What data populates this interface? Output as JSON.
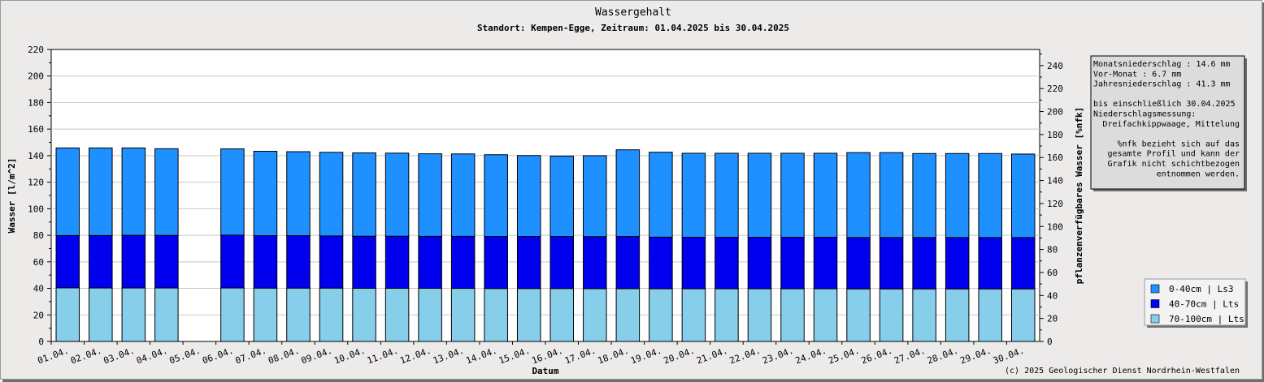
{
  "chart_data": {
    "type": "bar",
    "stacked": true,
    "title": "Wassergehalt",
    "subtitle": "Standort: Kempen-Egge, Zeitraum: 01.04.2025 bis 30.04.2025",
    "xlabel": "Datum",
    "ylabel": "Wasser [l/m^2]",
    "y2label": "pflanzenverfügbares Wasser [%nfk]",
    "ylim": [
      0,
      220
    ],
    "y2lim": [
      0,
      254
    ],
    "yticks": [
      0,
      20,
      40,
      60,
      80,
      100,
      120,
      140,
      160,
      180,
      200,
      220
    ],
    "y2ticks": [
      0,
      20,
      40,
      60,
      80,
      100,
      120,
      140,
      160,
      180,
      200,
      220,
      240
    ],
    "grid": true,
    "legend_position": "bottom-right",
    "categories": [
      "01.04.",
      "02.04.",
      "03.04.",
      "04.04.",
      "05.04.",
      "06.04.",
      "07.04.",
      "08.04.",
      "09.04.",
      "10.04.",
      "11.04.",
      "12.04.",
      "13.04.",
      "14.04.",
      "15.04.",
      "16.04.",
      "17.04.",
      "18.04.",
      "19.04.",
      "20.04.",
      "21.04.",
      "22.04.",
      "23.04.",
      "24.04.",
      "25.04.",
      "26.04.",
      "27.04.",
      "28.04.",
      "29.04.",
      "30.04."
    ],
    "series": [
      {
        "name": "70-100cm | Lts",
        "color": "#87ceeb",
        "values": [
          40.4,
          40.3,
          40.3,
          40.3,
          null,
          40.3,
          40.2,
          40.2,
          40.2,
          40.1,
          40.1,
          40.1,
          40.0,
          39.9,
          39.9,
          39.9,
          39.8,
          39.8,
          39.7,
          39.7,
          39.7,
          39.7,
          39.7,
          39.7,
          39.6,
          39.6,
          39.6,
          39.6,
          39.6,
          39.6
        ]
      },
      {
        "name": "40-70cm | Lts",
        "color": "#0000ee",
        "values": [
          39.4,
          39.5,
          39.7,
          39.6,
          null,
          39.8,
          39.5,
          39.5,
          39.3,
          39.2,
          39.2,
          39.1,
          39.2,
          39.2,
          39.2,
          39.2,
          39.2,
          39.3,
          38.9,
          38.8,
          38.8,
          38.8,
          38.8,
          38.8,
          38.7,
          38.7,
          38.7,
          38.7,
          38.7,
          38.7
        ]
      },
      {
        "name": "0-40cm | Ls3",
        "color": "#1e90ff",
        "values": [
          66.0,
          66.0,
          65.8,
          65.3,
          null,
          65.0,
          63.6,
          63.3,
          63.0,
          62.8,
          62.6,
          62.2,
          62.1,
          61.6,
          61.0,
          60.6,
          61.0,
          65.3,
          64.0,
          63.3,
          63.3,
          63.3,
          63.3,
          63.3,
          64.0,
          64.0,
          63.3,
          63.3,
          63.3,
          62.9
        ]
      }
    ]
  },
  "info": {
    "lines": [
      "Monatsniederschlag :   14.6 mm",
      "Vor-Monat          :    6.7 mm",
      "Jahresniederschlag :   41.3 mm",
      "",
      "bis einschließlich 30.04.2025",
      "Niederschlagsmessung:",
      "  Dreifachkippwaage, Mittelung",
      "",
      "%nfk bezieht sich auf das",
      "gesamte Profil und kann der",
      "Grafik nicht schichtbezogen",
      "entnommen werden."
    ],
    "align": [
      "left",
      "left",
      "left",
      "left",
      "left",
      "left",
      "right",
      "left",
      "right",
      "right",
      "right",
      "right"
    ]
  },
  "footer": "(c) 2025 Geologischer Dienst Nordrhein-Westfalen"
}
